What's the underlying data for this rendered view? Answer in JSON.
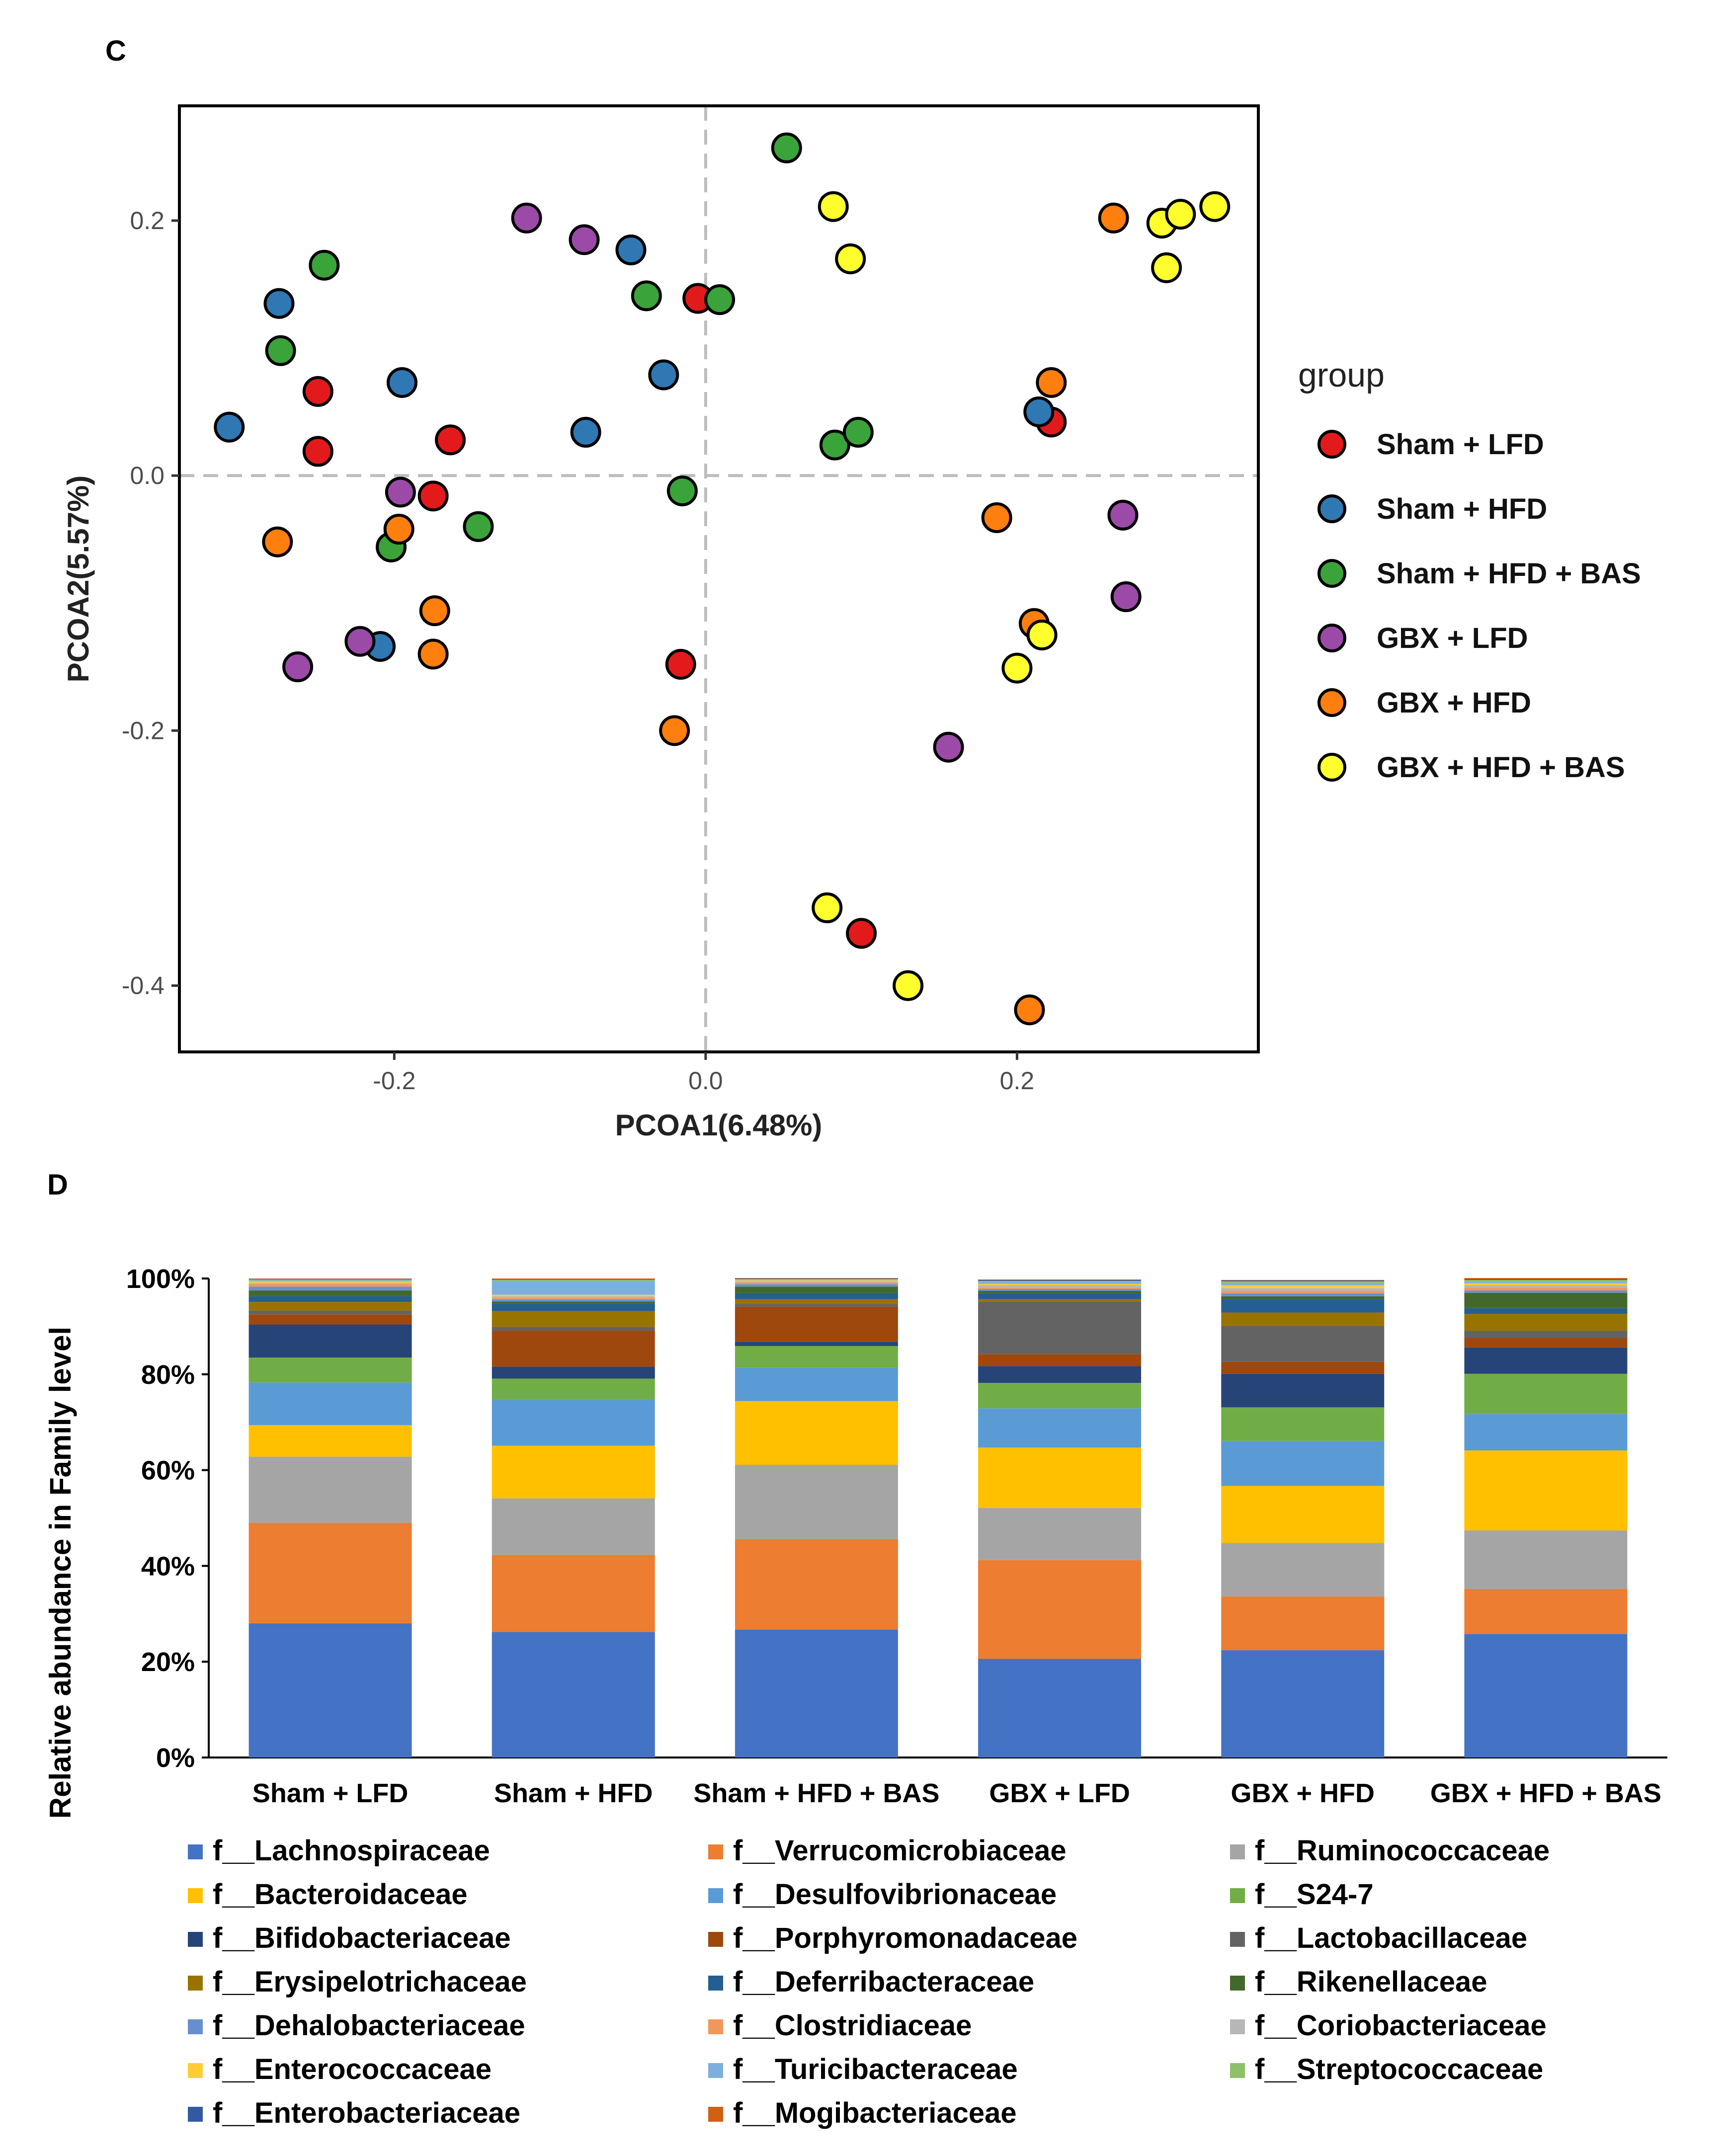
{
  "panel_c": {
    "label": "C",
    "legend_title": "group",
    "groups": [
      {
        "name": "Sham + LFD",
        "color": "#e31a1c"
      },
      {
        "name": "Sham + HFD",
        "color": "#2f78b4"
      },
      {
        "name": "Sham + HFD + BAS",
        "color": "#3aa33a"
      },
      {
        "name": "GBX + LFD",
        "color": "#9b4aa8"
      },
      {
        "name": "GBX + HFD",
        "color": "#ff7f0e"
      },
      {
        "name": "GBX + HFD + BAS",
        "color": "#ffff2e"
      }
    ]
  },
  "panel_d": {
    "label": "D",
    "colors": [
      "#4472c4",
      "#ed7d31",
      "#a5a5a5",
      "#ffc000",
      "#5b9bd5",
      "#70ad47",
      "#264478",
      "#9e480e",
      "#636363",
      "#997300",
      "#255e91",
      "#43682b",
      "#698ed0",
      "#f1975a",
      "#b7b7b7",
      "#ffcd33",
      "#7cafdd",
      "#8cc168",
      "#335aa1",
      "#d26012"
    ]
  },
  "chart_data": [
    {
      "type": "scatter",
      "title": "",
      "xlabel": "PCOA1(6.48%)",
      "ylabel": "PCOA2(5.57%)",
      "xlim": [
        -0.338,
        0.355
      ],
      "ylim": [
        -0.452,
        0.29
      ],
      "xticks": [
        {
          "v": -0.2,
          "label": "-0.2"
        },
        {
          "v": 0.0,
          "label": "0.0"
        },
        {
          "v": 0.2,
          "label": "0.2"
        }
      ],
      "yticks": [
        {
          "v": 0.2,
          "label": "0.2"
        },
        {
          "v": 0.0,
          "label": "0.0"
        },
        {
          "v": -0.2,
          "label": "-0.2"
        },
        {
          "v": -0.4,
          "label": "-0.4"
        }
      ],
      "reference_lines": {
        "x": 0,
        "y": 0,
        "style": "dashed"
      },
      "series": [
        {
          "name": "Sham + LFD",
          "points": [
            [
              -0.249,
              0.066
            ],
            [
              -0.249,
              0.019
            ],
            [
              -0.164,
              0.028
            ],
            [
              -0.175,
              -0.016
            ],
            [
              -0.005,
              0.139
            ],
            [
              0.222,
              0.042
            ],
            [
              -0.016,
              -0.148
            ],
            [
              0.1,
              -0.359
            ]
          ]
        },
        {
          "name": "Sham + HFD",
          "points": [
            [
              -0.306,
              0.038
            ],
            [
              -0.274,
              0.135
            ],
            [
              -0.195,
              0.073
            ],
            [
              -0.077,
              0.034
            ],
            [
              -0.048,
              0.177
            ],
            [
              -0.027,
              0.079
            ],
            [
              0.214,
              0.05
            ],
            [
              -0.209,
              -0.134
            ]
          ]
        },
        {
          "name": "Sham + HFD + BAS",
          "points": [
            [
              -0.245,
              0.165
            ],
            [
              -0.273,
              0.098
            ],
            [
              -0.038,
              0.141
            ],
            [
              0.009,
              0.138
            ],
            [
              0.052,
              0.257
            ],
            [
              0.083,
              0.024
            ],
            [
              0.098,
              0.034
            ],
            [
              -0.015,
              -0.012
            ],
            [
              -0.146,
              -0.04
            ],
            [
              -0.202,
              -0.056
            ]
          ]
        },
        {
          "name": "GBX + LFD",
          "points": [
            [
              -0.115,
              0.202
            ],
            [
              -0.078,
              0.185
            ],
            [
              -0.196,
              -0.013
            ],
            [
              -0.222,
              -0.13
            ],
            [
              -0.262,
              -0.15
            ],
            [
              0.156,
              -0.213
            ],
            [
              0.268,
              -0.031
            ],
            [
              0.27,
              -0.095
            ]
          ]
        },
        {
          "name": "GBX + HFD",
          "points": [
            [
              -0.275,
              -0.052
            ],
            [
              -0.197,
              -0.042
            ],
            [
              -0.174,
              -0.106
            ],
            [
              -0.175,
              -0.14
            ],
            [
              -0.02,
              -0.2
            ],
            [
              0.187,
              -0.033
            ],
            [
              0.211,
              -0.116
            ],
            [
              0.222,
              0.073
            ],
            [
              0.262,
              0.202
            ],
            [
              0.208,
              -0.419
            ]
          ]
        },
        {
          "name": "GBX + HFD + BAS",
          "points": [
            [
              0.082,
              0.211
            ],
            [
              0.093,
              0.17
            ],
            [
              0.293,
              0.198
            ],
            [
              0.305,
              0.205
            ],
            [
              0.327,
              0.211
            ],
            [
              0.296,
              0.163
            ],
            [
              0.216,
              -0.125
            ],
            [
              0.2,
              -0.151
            ],
            [
              0.078,
              -0.339
            ],
            [
              0.13,
              -0.4
            ]
          ]
        }
      ]
    },
    {
      "type": "bar",
      "stacked": true,
      "ylabel": "Relative abundance in Family level",
      "xlabel": "",
      "ylim": [
        0,
        100
      ],
      "yticks": [
        "0%",
        "20%",
        "40%",
        "60%",
        "80%",
        "100%"
      ],
      "categories": [
        "Sham + LFD",
        "Sham + HFD",
        "Sham + HFD + BAS",
        "GBX + LFD",
        "GBX + HFD",
        "GBX + HFD + BAS"
      ],
      "series": [
        {
          "name": "f__Lachnospiraceae",
          "values": [
            28.0,
            26.2,
            26.7,
            20.6,
            22.4,
            25.8
          ]
        },
        {
          "name": "f__Verrucomicrobiaceae",
          "values": [
            21.0,
            16.1,
            18.9,
            20.6,
            11.2,
            9.4
          ]
        },
        {
          "name": "f__Ruminococcaceae",
          "values": [
            13.8,
            11.8,
            15.5,
            10.9,
            11.2,
            12.2
          ]
        },
        {
          "name": "f__Bacteroidaceae",
          "values": [
            6.6,
            11.0,
            13.3,
            12.6,
            11.9,
            16.7
          ]
        },
        {
          "name": "f__Desulfovibrionaceae",
          "values": [
            8.9,
            9.7,
            7.0,
            8.2,
            9.4,
            7.6
          ]
        },
        {
          "name": "f__S24-7",
          "values": [
            5.2,
            4.3,
            4.5,
            5.3,
            7.0,
            8.4
          ]
        },
        {
          "name": "f__Bifidobacteriaceae",
          "values": [
            6.9,
            2.5,
            0.9,
            3.5,
            7.0,
            5.5
          ]
        },
        {
          "name": "f__Porphyromonadaceae",
          "values": [
            2.1,
            7.5,
            7.3,
            2.5,
            2.5,
            2.0
          ]
        },
        {
          "name": "f__Lactobacillaceae",
          "values": [
            0.8,
            0.8,
            0.6,
            11.0,
            7.5,
            1.5
          ]
        },
        {
          "name": "f__Erysipelotrichaceae",
          "values": [
            1.8,
            3.3,
            1.0,
            0.5,
            2.8,
            3.5
          ]
        },
        {
          "name": "f__Deferribacteraceae",
          "values": [
            1.2,
            1.6,
            1.3,
            1.2,
            2.8,
            1.2
          ]
        },
        {
          "name": "f__Rikenellaceae",
          "values": [
            1.2,
            0.4,
            1.3,
            0.5,
            0.6,
            3.2
          ]
        },
        {
          "name": "f__Dehalobacteriaceae",
          "values": [
            0.8,
            0.4,
            0.5,
            0.4,
            0.6,
            0.5
          ]
        },
        {
          "name": "f__Clostridiaceae",
          "values": [
            0.5,
            0.3,
            0.4,
            0.3,
            0.5,
            0.6
          ]
        },
        {
          "name": "f__Coriobacteriaceae",
          "values": [
            0.3,
            0.4,
            0.2,
            0.5,
            0.6,
            0.5
          ]
        },
        {
          "name": "f__Enterococcaceae",
          "values": [
            0.3,
            0.3,
            0.2,
            0.3,
            0.6,
            0.4
          ]
        },
        {
          "name": "f__Turicibacteraceae",
          "values": [
            0.2,
            2.9,
            0.1,
            0.4,
            0.5,
            0.3
          ]
        },
        {
          "name": "f__Streptococcaceae",
          "values": [
            0.2,
            0.2,
            0.2,
            0.2,
            0.3,
            0.4
          ]
        },
        {
          "name": "f__Enterobacteriaceae",
          "values": [
            0.1,
            0.1,
            0.1,
            0.2,
            0.2,
            0.2
          ]
        },
        {
          "name": "f__Mogibacteriaceae",
          "values": [
            0.1,
            0.2,
            0.1,
            0.1,
            0.1,
            0.2
          ]
        }
      ]
    }
  ]
}
